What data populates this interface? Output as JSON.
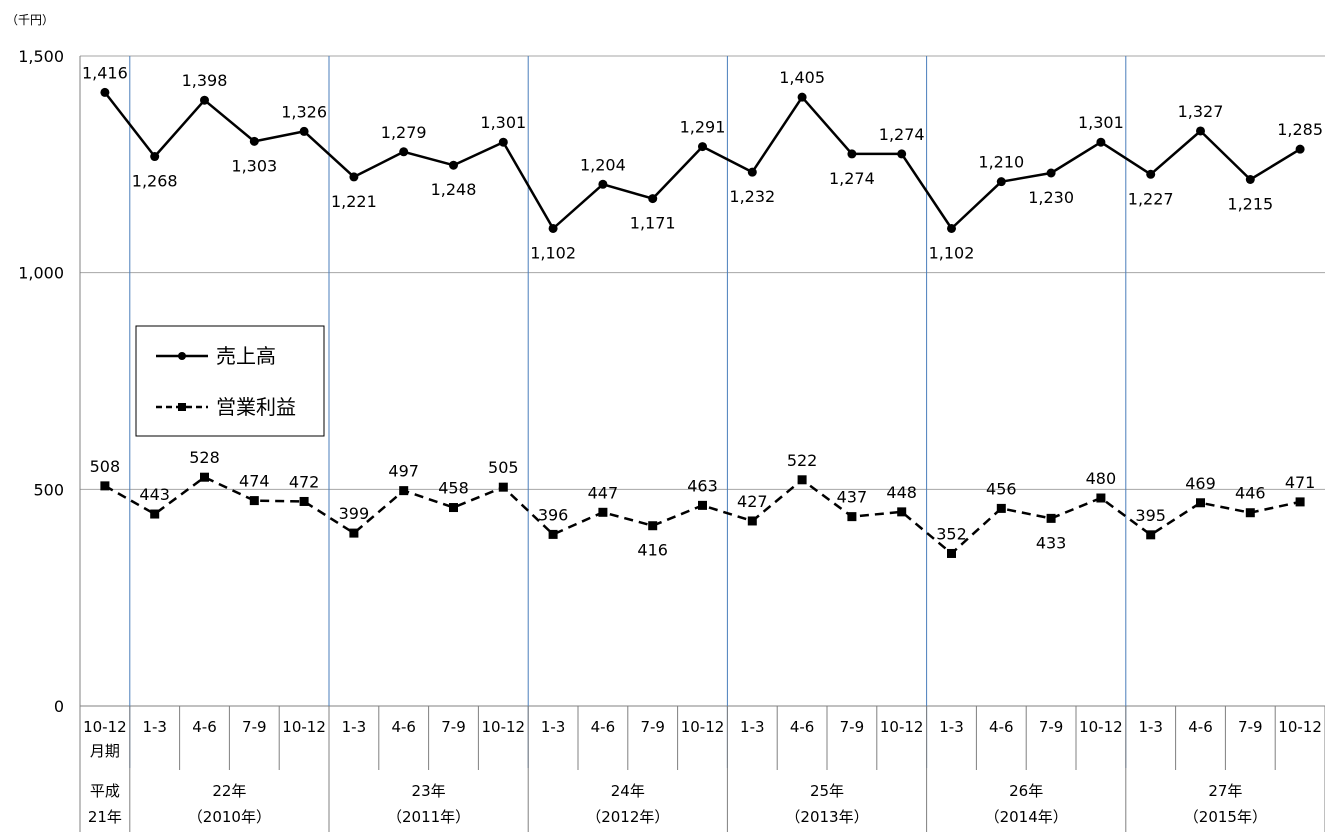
{
  "chart_data": {
    "type": "line",
    "title": "",
    "unit_label": "（千円）",
    "ylim": [
      0,
      1500
    ],
    "yticks": [
      0,
      500,
      1000,
      1500
    ],
    "ytick_labels": [
      "0",
      "500",
      "1,000",
      "1,500"
    ],
    "grid": true,
    "legend_position": "center-left",
    "categories": [
      "10-12",
      "1-3",
      "4-6",
      "7-9",
      "10-12",
      "1-3",
      "4-6",
      "7-9",
      "10-12",
      "1-3",
      "4-6",
      "7-9",
      "10-12",
      "1-3",
      "4-6",
      "7-9",
      "10-12",
      "1-3",
      "4-6",
      "7-9",
      "10-12",
      "1-3",
      "4-6",
      "7-9",
      "10-12"
    ],
    "first_category_suffix": "月期",
    "year_groups": [
      {
        "line1": "平成",
        "line2": "21年",
        "start": 0,
        "end": 0
      },
      {
        "line1": "22年",
        "line2": "（2010年）",
        "start": 1,
        "end": 4
      },
      {
        "line1": "23年",
        "line2": "（2011年）",
        "start": 5,
        "end": 8
      },
      {
        "line1": "24年",
        "line2": "（2012年）",
        "start": 9,
        "end": 12
      },
      {
        "line1": "25年",
        "line2": "（2013年）",
        "start": 13,
        "end": 16
      },
      {
        "line1": "26年",
        "line2": "（2014年）",
        "start": 17,
        "end": 20
      },
      {
        "line1": "27年",
        "line2": "（2015年）",
        "start": 21,
        "end": 24
      }
    ],
    "series": [
      {
        "name": "売上高",
        "style": "solid",
        "marker": "circle",
        "color": "#000000",
        "values": [
          1416,
          1268,
          1398,
          1303,
          1326,
          1221,
          1279,
          1248,
          1301,
          1102,
          1204,
          1171,
          1291,
          1232,
          1405,
          1274,
          1274,
          1102,
          1210,
          1230,
          1301,
          1227,
          1327,
          1215,
          1285
        ],
        "labels": [
          "1,416",
          "1,268",
          "1,398",
          "1,303",
          "1,326",
          "1,221",
          "1,279",
          "1,248",
          "1,301",
          "1,102",
          "1,204",
          "1,171",
          "1,291",
          "1,232",
          "1,405",
          "1,274",
          "1,274",
          "1,102",
          "1,210",
          "1,230",
          "1,301",
          "1,227",
          "1,327",
          "1,215",
          "1,285"
        ],
        "label_pos": [
          "above",
          "below",
          "above",
          "below",
          "above",
          "below",
          "above",
          "below",
          "above",
          "below",
          "above",
          "below",
          "above",
          "below",
          "above",
          "below",
          "above",
          "below",
          "above",
          "below",
          "above",
          "below",
          "above",
          "below",
          "above"
        ]
      },
      {
        "name": "営業利益",
        "style": "dashed",
        "marker": "square",
        "color": "#000000",
        "values": [
          508,
          443,
          528,
          474,
          472,
          399,
          497,
          458,
          505,
          396,
          447,
          416,
          463,
          427,
          522,
          437,
          448,
          352,
          456,
          433,
          480,
          395,
          469,
          446,
          471
        ],
        "labels": [
          "508",
          "443",
          "528",
          "474",
          "472",
          "399",
          "497",
          "458",
          "505",
          "396",
          "447",
          "416",
          "463",
          "427",
          "522",
          "437",
          "448",
          "352",
          "456",
          "433",
          "480",
          "395",
          "469",
          "446",
          "471"
        ],
        "label_pos": [
          "above",
          "above",
          "above",
          "above",
          "above",
          "above",
          "above",
          "above",
          "above",
          "above",
          "above",
          "below",
          "above",
          "above",
          "above",
          "above",
          "above",
          "above",
          "above",
          "below",
          "above",
          "above",
          "above",
          "above",
          "above"
        ]
      }
    ],
    "separator_color": "#4a7ebb"
  }
}
